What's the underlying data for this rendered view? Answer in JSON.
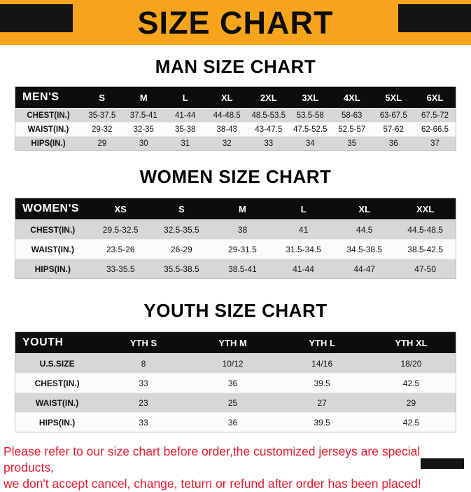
{
  "banner": {
    "title": "SIZE CHART",
    "bg_color": "#F7A41D",
    "bar_color": "#141414"
  },
  "sections": [
    {
      "id": "men",
      "title": "MAN SIZE CHART",
      "table": {
        "header": [
          "MEN'S",
          "S",
          "M",
          "L",
          "XL",
          "2XL",
          "3XL",
          "4XL",
          "5XL",
          "6XL"
        ],
        "rows": [
          [
            "CHEST(IN.)",
            "35-37.5",
            "37.5-41",
            "41-44",
            "44-48.5",
            "48.5-53.5",
            "53.5-58",
            "58-63",
            "63-67.5",
            "67.5-72"
          ],
          [
            "WAIST(IN.)",
            "29-32",
            "32-35",
            "35-38",
            "38-43",
            "43-47.5",
            "47.5-52.5",
            "52.5-57",
            "57-62",
            "62-66.5"
          ],
          [
            "HIPS(IN.)",
            "29",
            "30",
            "31",
            "32",
            "33",
            "34",
            "35",
            "36",
            "37"
          ]
        ]
      }
    },
    {
      "id": "women",
      "title": "WOMEN SIZE CHART",
      "table": {
        "header": [
          "WOMEN'S",
          "XS",
          "S",
          "M",
          "L",
          "XL",
          "XXL"
        ],
        "rows": [
          [
            "CHEST(IN.)",
            "29.5-32.5",
            "32.5-35.5",
            "38",
            "41",
            "44.5",
            "44.5-48.5"
          ],
          [
            "WAIST(IN.)",
            "23.5-26",
            "26-29",
            "29-31.5",
            "31.5-34.5",
            "34.5-38.5",
            "38.5-42.5"
          ],
          [
            "HIPS(IN.)",
            "33-35.5",
            "35.5-38.5",
            "38.5-41",
            "41-44",
            "44-47",
            "47-50"
          ]
        ]
      }
    },
    {
      "id": "youth",
      "title": "YOUTH SIZE CHART",
      "table": {
        "header": [
          "YOUTH",
          "YTH S",
          "YTH M",
          "YTH L",
          "YTH XL"
        ],
        "rows": [
          [
            "U.S.SIZE",
            "8",
            "10/12",
            "14/16",
            "18/20"
          ],
          [
            "CHEST(IN.)",
            "33",
            "36",
            "39.5",
            "42.5"
          ],
          [
            "WAIST(IN.)",
            "23",
            "25",
            "27",
            "29"
          ],
          [
            "HIPS(IN.)",
            "33",
            "36",
            "39.5",
            "42.5"
          ]
        ]
      }
    }
  ],
  "footer": {
    "line1": "Please refer to our size chart before order,the customized jerseys are special products,",
    "line2": "we don't accept cancel, change, teturn or refund after order has been placed!",
    "text_color": "#e8192c"
  }
}
